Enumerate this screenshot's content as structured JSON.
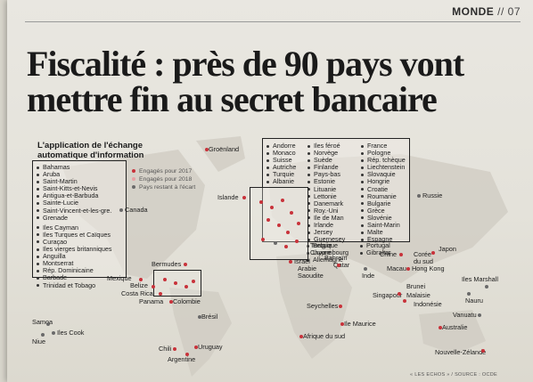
{
  "section": {
    "name": "MONDE",
    "sep": "//",
    "page": "07"
  },
  "headline": "Fiscalité : près de 90 pays vont mettre fin au secret bancaire",
  "legend": {
    "title": "L'application de l'échange automatique d'information",
    "engaged_2017": "Engagés pour 2017",
    "engaged_2018": "Engagés pour 2018",
    "remaining": "Pays restant à l'écart",
    "colors": {
      "engaged_2017": "#c8323a",
      "engaged_2018": "#e8a0a4",
      "remaining": "#6a6a6a"
    }
  },
  "caribbean_list": [
    "Bahamas",
    "Aruba",
    "Saint-Martin",
    "Saint-Kitts-et-Nevis",
    "Antigua-et-Barbuda",
    "Sainte-Lucie",
    "Saint-Vincent-et-les-gre.",
    "Grenade"
  ],
  "caribbean_list2": [
    "Iles Cayman",
    "Iles Turques et Caïques",
    "Curaçao",
    "Iles vierges britanniques",
    "Anguilla",
    "Montserrat",
    "Rép. Dominicaine",
    "Barbade",
    "Trinidad et Tobago"
  ],
  "europe_col1": [
    "Andorre",
    "Monaco",
    "Suisse",
    "Autriche",
    "Turquie",
    "Albanie"
  ],
  "europe_col2": [
    "Iles féroé",
    "Norvège",
    "Suède",
    "Finlande",
    "Pays-bas",
    "Estonie",
    "Lituanie",
    "Lettonie",
    "Danemark",
    "Roy.-Uni",
    "Ile de Man",
    "Irlande",
    "Jersey",
    "Guernesey",
    "Belgique",
    "Luxembourg",
    "Allemagne"
  ],
  "europe_col3": [
    "France",
    "Pologne",
    "Rép. tchèque",
    "Liechtenstein",
    "Slovaquie",
    "Hongrie",
    "Croatie",
    "Roumanie",
    "Bulgarie",
    "Grèce",
    "Slovénie",
    "Saint-Marin",
    "Malte",
    "Espagne",
    "Portugal",
    "Gibraltar"
  ],
  "places": {
    "groenland": "Groënland",
    "islande": "Islande",
    "canada": "Canada",
    "russie": "Russie",
    "bermudes": "Bermudes",
    "mexique": "Mexique",
    "belize": "Belize",
    "costa_rica": "Costa Rica",
    "panama": "Panama",
    "colombie": "Colombie",
    "bresil": "Brésil",
    "chili": "Chili",
    "uruguay": "Uruguay",
    "argentine": "Argentine",
    "samoa": "Samoa",
    "iles_cook": "Iles Cook",
    "niue": "Niue",
    "chypre": "Chypre",
    "turquie": "Turquie",
    "israel": "Israël",
    "arabie": "Arabie Saoudite",
    "bahrein": "Bahreïn",
    "qatar": "Qatar",
    "inde": "Inde",
    "chine": "Chine",
    "coree": "Corée du sud",
    "japon": "Japon",
    "macau": "Macau",
    "hongkong": "Hong Kong",
    "singapour": "Singapour",
    "brunei": "Brunei",
    "malaisie": "Malaisie",
    "indonesie": "Indonésie",
    "seychelles": "Seychelles",
    "maurice": "Ile Maurice",
    "afrique_sud": "Afrique du sud",
    "marshall": "Iles Marshall",
    "nauru": "Nauru",
    "vanuatu": "Vanuatu",
    "australie": "Australie",
    "nz": "Nouvelle-Zélande"
  },
  "footer": "« LES ECHOS » / SOURCE : OCDE"
}
